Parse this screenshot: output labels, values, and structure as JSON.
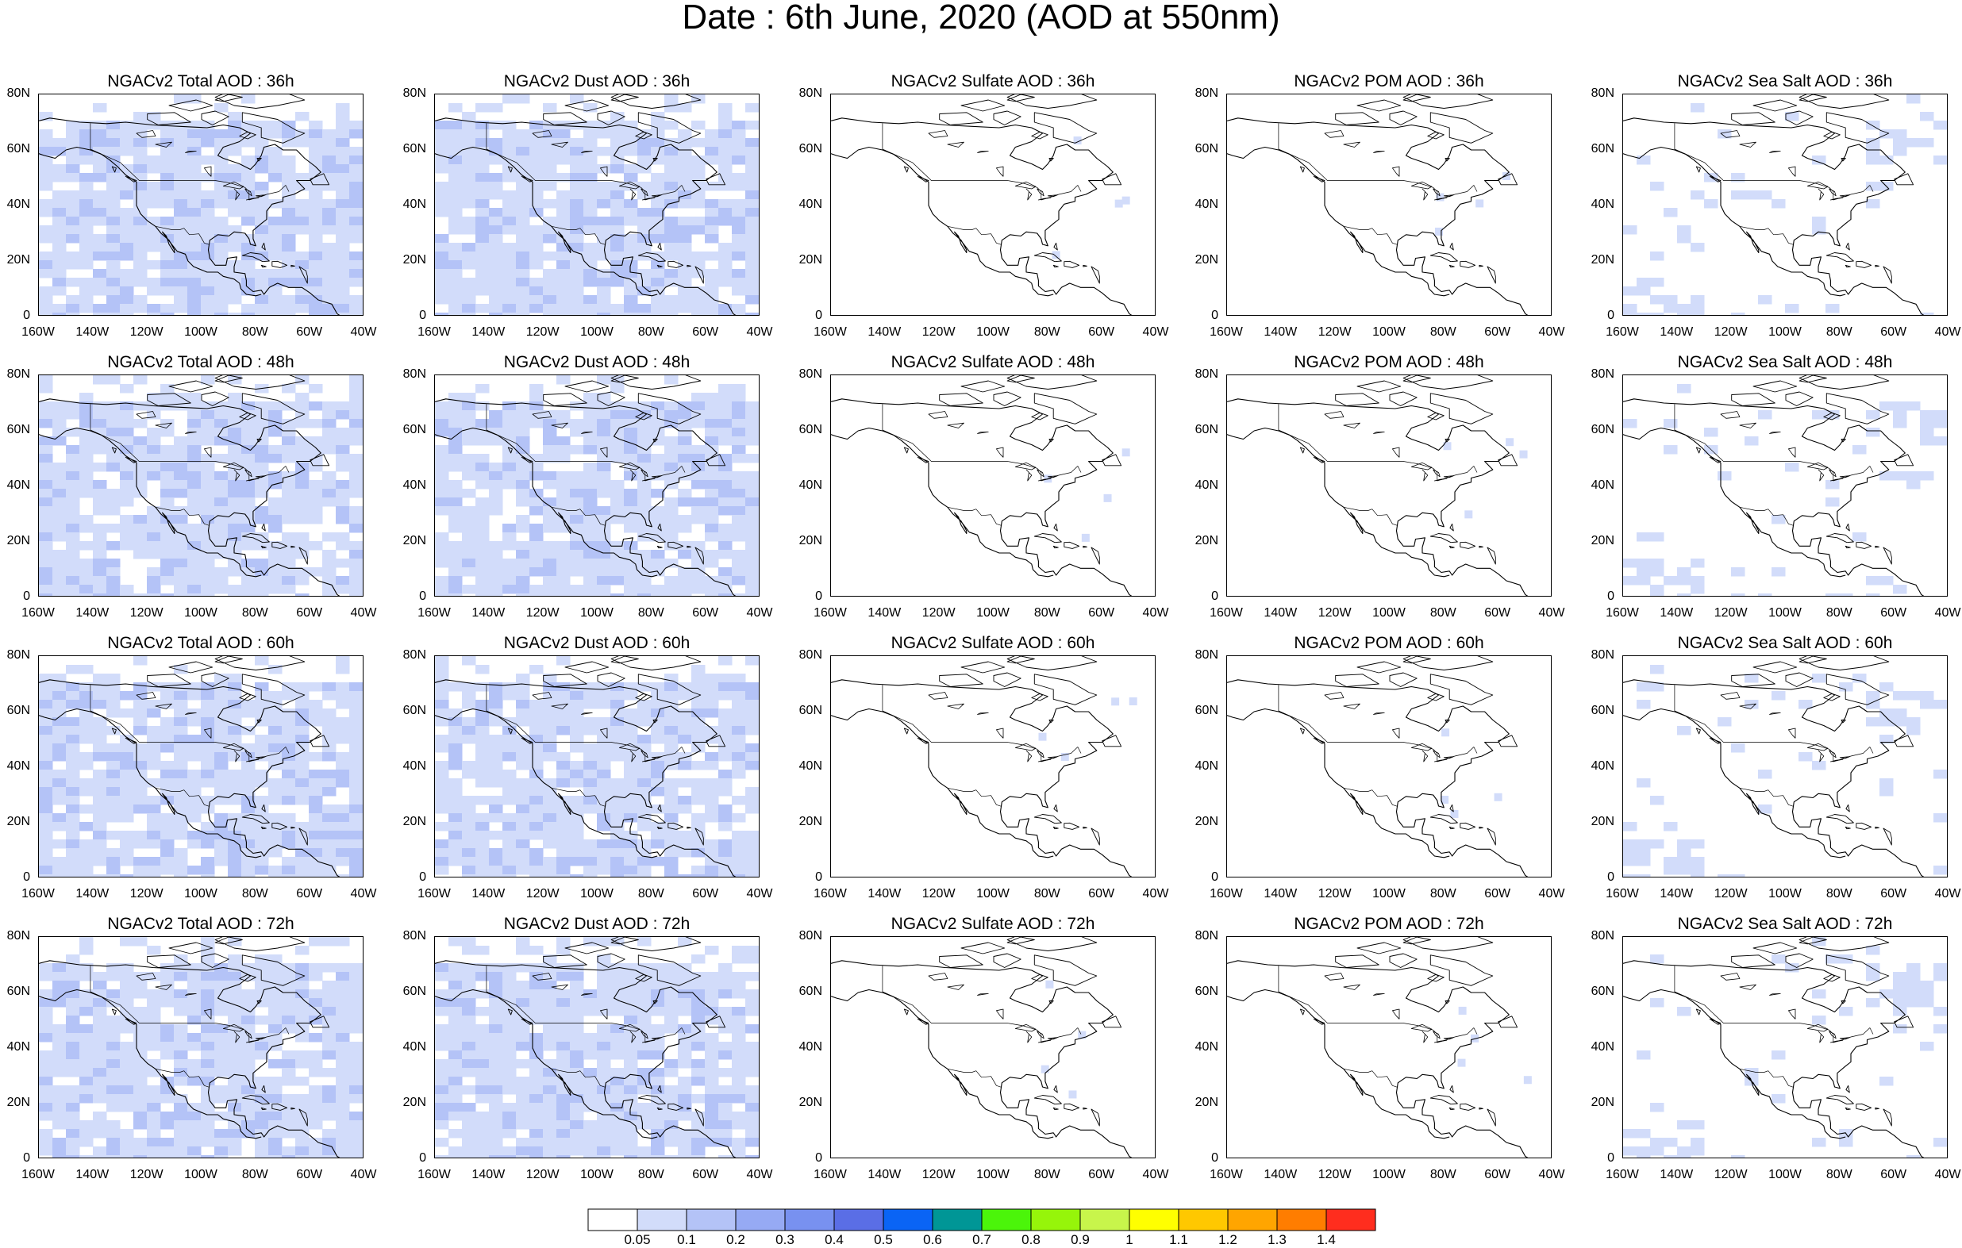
{
  "title": "Date : 6th June, 2020 (AOD at 550nm)",
  "panels": [
    {
      "title": "NGACv2 Total AOD : 36h",
      "product": "total",
      "lead": "36h",
      "level": "high"
    },
    {
      "title": "NGACv2 Dust AOD : 36h",
      "product": "dust",
      "lead": "36h",
      "level": "high"
    },
    {
      "title": "NGACv2 Sulfate AOD : 36h",
      "product": "sulfate",
      "lead": "36h",
      "level": "none"
    },
    {
      "title": "NGACv2 POM AOD : 36h",
      "product": "pom",
      "lead": "36h",
      "level": "none"
    },
    {
      "title": "NGACv2 Sea Salt AOD : 36h",
      "product": "seasalt",
      "lead": "36h",
      "level": "low"
    },
    {
      "title": "NGACv2 Total AOD : 48h",
      "product": "total",
      "lead": "48h",
      "level": "high"
    },
    {
      "title": "NGACv2 Dust AOD : 48h",
      "product": "dust",
      "lead": "48h",
      "level": "high"
    },
    {
      "title": "NGACv2 Sulfate AOD : 48h",
      "product": "sulfate",
      "lead": "48h",
      "level": "none"
    },
    {
      "title": "NGACv2 POM AOD : 48h",
      "product": "pom",
      "lead": "48h",
      "level": "none"
    },
    {
      "title": "NGACv2 Sea Salt AOD : 48h",
      "product": "seasalt",
      "lead": "48h",
      "level": "low"
    },
    {
      "title": "NGACv2 Total AOD : 60h",
      "product": "total",
      "lead": "60h",
      "level": "high"
    },
    {
      "title": "NGACv2 Dust AOD : 60h",
      "product": "dust",
      "lead": "60h",
      "level": "high"
    },
    {
      "title": "NGACv2 Sulfate AOD : 60h",
      "product": "sulfate",
      "lead": "60h",
      "level": "none"
    },
    {
      "title": "NGACv2 POM AOD : 60h",
      "product": "pom",
      "lead": "60h",
      "level": "none"
    },
    {
      "title": "NGACv2 Sea Salt AOD : 60h",
      "product": "seasalt",
      "lead": "60h",
      "level": "low"
    },
    {
      "title": "NGACv2 Total AOD : 72h",
      "product": "total",
      "lead": "72h",
      "level": "high"
    },
    {
      "title": "NGACv2 Dust AOD : 72h",
      "product": "dust",
      "lead": "72h",
      "level": "high"
    },
    {
      "title": "NGACv2 Sulfate AOD : 72h",
      "product": "sulfate",
      "lead": "72h",
      "level": "none"
    },
    {
      "title": "NGACv2 POM AOD : 72h",
      "product": "pom",
      "lead": "72h",
      "level": "none"
    },
    {
      "title": "NGACv2 Sea Salt  AOD : 72h",
      "product": "seasalt",
      "lead": "72h",
      "level": "low"
    }
  ],
  "lat_ticks": [
    "80N",
    "60N",
    "40N",
    "20N",
    "0"
  ],
  "lon_ticks": [
    "160W",
    "140W",
    "120W",
    "100W",
    "80W",
    "60W",
    "40W"
  ],
  "colorbar": {
    "colors": [
      "#ffffff",
      "#d2dcfa",
      "#b4c3f7",
      "#96aaf4",
      "#7891f0",
      "#5a6ee6",
      "#0a64f5",
      "#009696",
      "#4bf50a",
      "#96f50a",
      "#c8f54b",
      "#ffff00",
      "#ffc800",
      "#ffa500",
      "#ff7d00",
      "#ff2d1e"
    ],
    "labels": [
      "0.05",
      "0.1",
      "0.2",
      "0.3",
      "0.4",
      "0.5",
      "0.6",
      "0.7",
      "0.8",
      "0.9",
      "1",
      "1.1",
      "1.2",
      "1.3",
      "1.4"
    ]
  }
}
